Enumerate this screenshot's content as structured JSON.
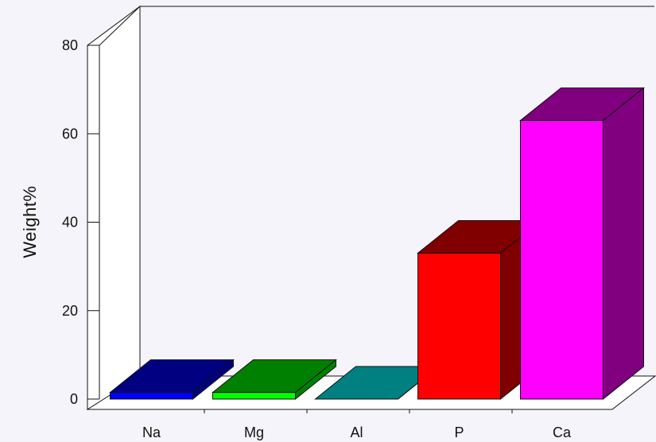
{
  "chart_data": {
    "type": "bar",
    "style": "3d",
    "categories": [
      "Na",
      "Mg",
      "Al",
      "P",
      "Ca"
    ],
    "values": [
      1.5,
      1.5,
      0,
      33,
      63
    ],
    "colors": {
      "front": [
        "#0000ff",
        "#00ff00",
        "#008080",
        "#ff0000",
        "#ff00ff"
      ],
      "side": [
        "#000080",
        "#008000",
        "#008080",
        "#800000",
        "#800080"
      ]
    },
    "ylabel": "Weight%",
    "xlabel": "",
    "title": "",
    "ylim": [
      0,
      80
    ],
    "yticks": [
      0,
      20,
      40,
      60,
      80
    ],
    "grid": false
  }
}
